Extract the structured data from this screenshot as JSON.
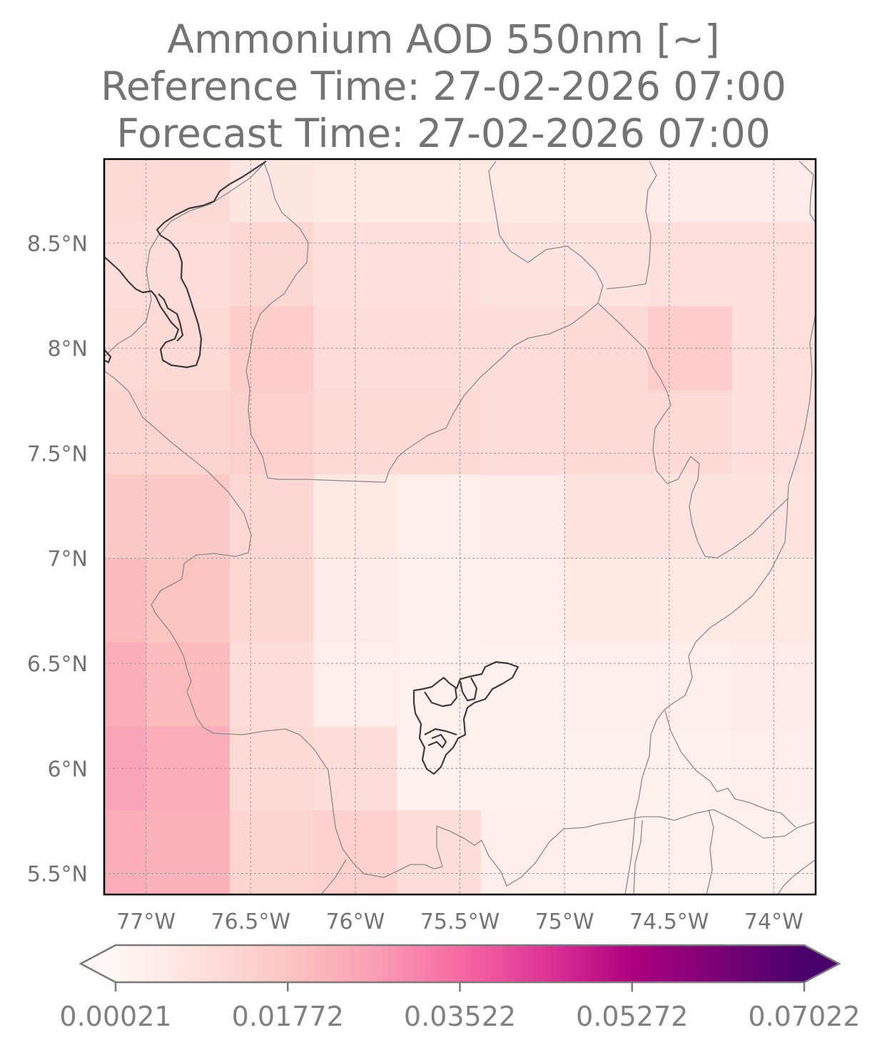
{
  "title": {
    "line1": "Ammonium AOD 550nm [~]",
    "line2": "Reference Time: 27-02-2026 07:00",
    "line3": "Forecast Time: 27-02-2026 07:00"
  },
  "map": {
    "extent": {
      "lon_min": -77.2,
      "lon_max": -73.8,
      "lat_min": 5.4,
      "lat_max": 8.9
    },
    "grid_cell_deg": 0.4,
    "lat_ticks": [
      {
        "value": 8.5,
        "label": "8.5°N"
      },
      {
        "value": 8.0,
        "label": "8°N"
      },
      {
        "value": 7.5,
        "label": "7.5°N"
      },
      {
        "value": 7.0,
        "label": "7°N"
      },
      {
        "value": 6.5,
        "label": "6.5°N"
      },
      {
        "value": 6.0,
        "label": "6°N"
      },
      {
        "value": 5.5,
        "label": "5.5°N"
      }
    ],
    "lon_ticks": [
      {
        "value": -77.0,
        "label": "77°W"
      },
      {
        "value": -76.5,
        "label": "76.5°W"
      },
      {
        "value": -76.0,
        "label": "76°W"
      },
      {
        "value": -75.5,
        "label": "75.5°W"
      },
      {
        "value": -75.0,
        "label": "75°W"
      },
      {
        "value": -74.5,
        "label": "74.5°W"
      },
      {
        "value": -74.0,
        "label": "74°W"
      }
    ],
    "colors": {
      "boundary": "#8a8a8a",
      "coast": "#3c3c3c",
      "region_outline": "#1e1e1e",
      "frame": "#000000",
      "grid": "#999999"
    }
  },
  "colorbar": {
    "ticks": [
      "0.00021",
      "0.01772",
      "0.03522",
      "0.05272",
      "0.07022"
    ],
    "vmin": 0.00021,
    "vmax": 0.07022,
    "colormap": "RdPu",
    "stops": [
      "#fff7f3",
      "#fde0dd",
      "#fcc5c0",
      "#fa9fb5",
      "#f768a1",
      "#dd3497",
      "#ae017e",
      "#7a0177",
      "#49006a"
    ]
  },
  "chart_data": {
    "type": "heatmap",
    "x": [
      -77.2,
      -76.8,
      -76.4,
      -76.0,
      -75.6,
      -75.2,
      -74.8,
      -74.4,
      -74.0
    ],
    "y": [
      8.8,
      8.4,
      8.0,
      7.6,
      7.2,
      6.8,
      6.4,
      6.0,
      5.6
    ],
    "values": [
      [
        0.011,
        0.011,
        0.007,
        0.006,
        0.006,
        0.006,
        0.006,
        0.005,
        0.005
      ],
      [
        0.01,
        0.01,
        0.012,
        0.009,
        0.009,
        0.008,
        0.008,
        0.009,
        0.009
      ],
      [
        0.011,
        0.011,
        0.015,
        0.01,
        0.01,
        0.01,
        0.011,
        0.015,
        0.009
      ],
      [
        0.013,
        0.013,
        0.014,
        0.011,
        0.011,
        0.01,
        0.011,
        0.011,
        0.009
      ],
      [
        0.016,
        0.016,
        0.012,
        0.006,
        0.004,
        0.005,
        0.008,
        0.008,
        0.008
      ],
      [
        0.02,
        0.018,
        0.012,
        0.005,
        0.003,
        0.004,
        0.006,
        0.006,
        0.006
      ],
      [
        0.023,
        0.02,
        0.01,
        0.004,
        0.003,
        0.003,
        0.004,
        0.004,
        0.005
      ],
      [
        0.025,
        0.023,
        0.011,
        0.01,
        0.003,
        0.003,
        0.003,
        0.003,
        0.004
      ],
      [
        0.023,
        0.022,
        0.013,
        0.014,
        0.01,
        0.004,
        0.003,
        0.003,
        0.003
      ]
    ]
  }
}
